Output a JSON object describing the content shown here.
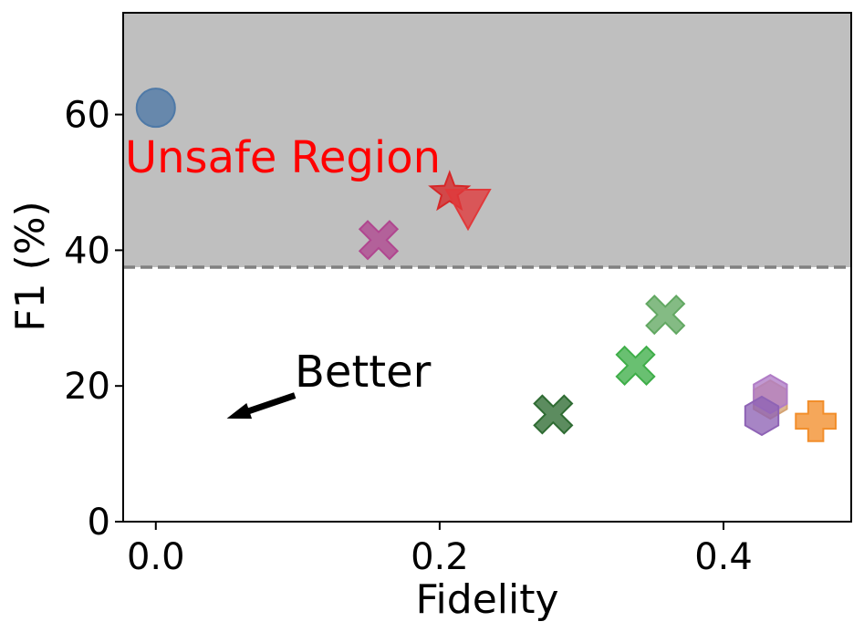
{
  "chart_data": {
    "type": "scatter",
    "title": "",
    "xlabel": "Fidelity",
    "ylabel": "F1 (%)",
    "xlim": [
      -0.023,
      0.49
    ],
    "ylim": [
      0,
      75
    ],
    "x_ticks": [
      0.0,
      0.2,
      0.4
    ],
    "x_tick_labels": [
      "0.0",
      "0.2",
      "0.4"
    ],
    "y_ticks": [
      0,
      20,
      40,
      60
    ],
    "y_tick_labels": [
      "0",
      "20",
      "40",
      "60"
    ],
    "grid": false,
    "unsafe_region": {
      "label": "Unsafe Region",
      "threshold": 37.5,
      "fill_color": "#bfbfbf",
      "line_color": "#808080",
      "label_color": "#ff0000"
    },
    "annotation": {
      "text": "Better",
      "arrow_from": [
        0.098,
        18.6
      ],
      "arrow_to": [
        0.05,
        15.2
      ],
      "color": "#000000"
    },
    "points": [
      {
        "name": "blue-circle",
        "x": 0.0,
        "y": 61.0,
        "marker": "circle",
        "color": "#4e79a7"
      },
      {
        "name": "pink-x",
        "x": 0.157,
        "y": 41.5,
        "marker": "x",
        "color": "#b0468f"
      },
      {
        "name": "red-star",
        "x": 0.207,
        "y": 48.5,
        "marker": "star",
        "color": "#d62728"
      },
      {
        "name": "red-triangle",
        "x": 0.22,
        "y": 46.5,
        "marker": "triangle-down",
        "color": "#e0393b"
      },
      {
        "name": "dark-green-x",
        "x": 0.28,
        "y": 15.8,
        "marker": "x",
        "color": "#2e6b32"
      },
      {
        "name": "green-x",
        "x": 0.338,
        "y": 23.0,
        "marker": "x",
        "color": "#3fae49"
      },
      {
        "name": "light-green-x",
        "x": 0.359,
        "y": 30.5,
        "marker": "x",
        "color": "#62a862"
      },
      {
        "name": "brown-hexagon",
        "x": 0.433,
        "y": 18.0,
        "marker": "hexagon",
        "color": "#d4a373"
      },
      {
        "name": "violet-hexagon",
        "x": 0.433,
        "y": 18.8,
        "marker": "hexagon",
        "color": "#b07cc6"
      },
      {
        "name": "purple-hexagon",
        "x": 0.427,
        "y": 15.6,
        "marker": "hexagon",
        "color": "#8e63b5"
      },
      {
        "name": "orange-plus",
        "x": 0.465,
        "y": 14.8,
        "marker": "plus",
        "color": "#f28e2b"
      }
    ]
  }
}
